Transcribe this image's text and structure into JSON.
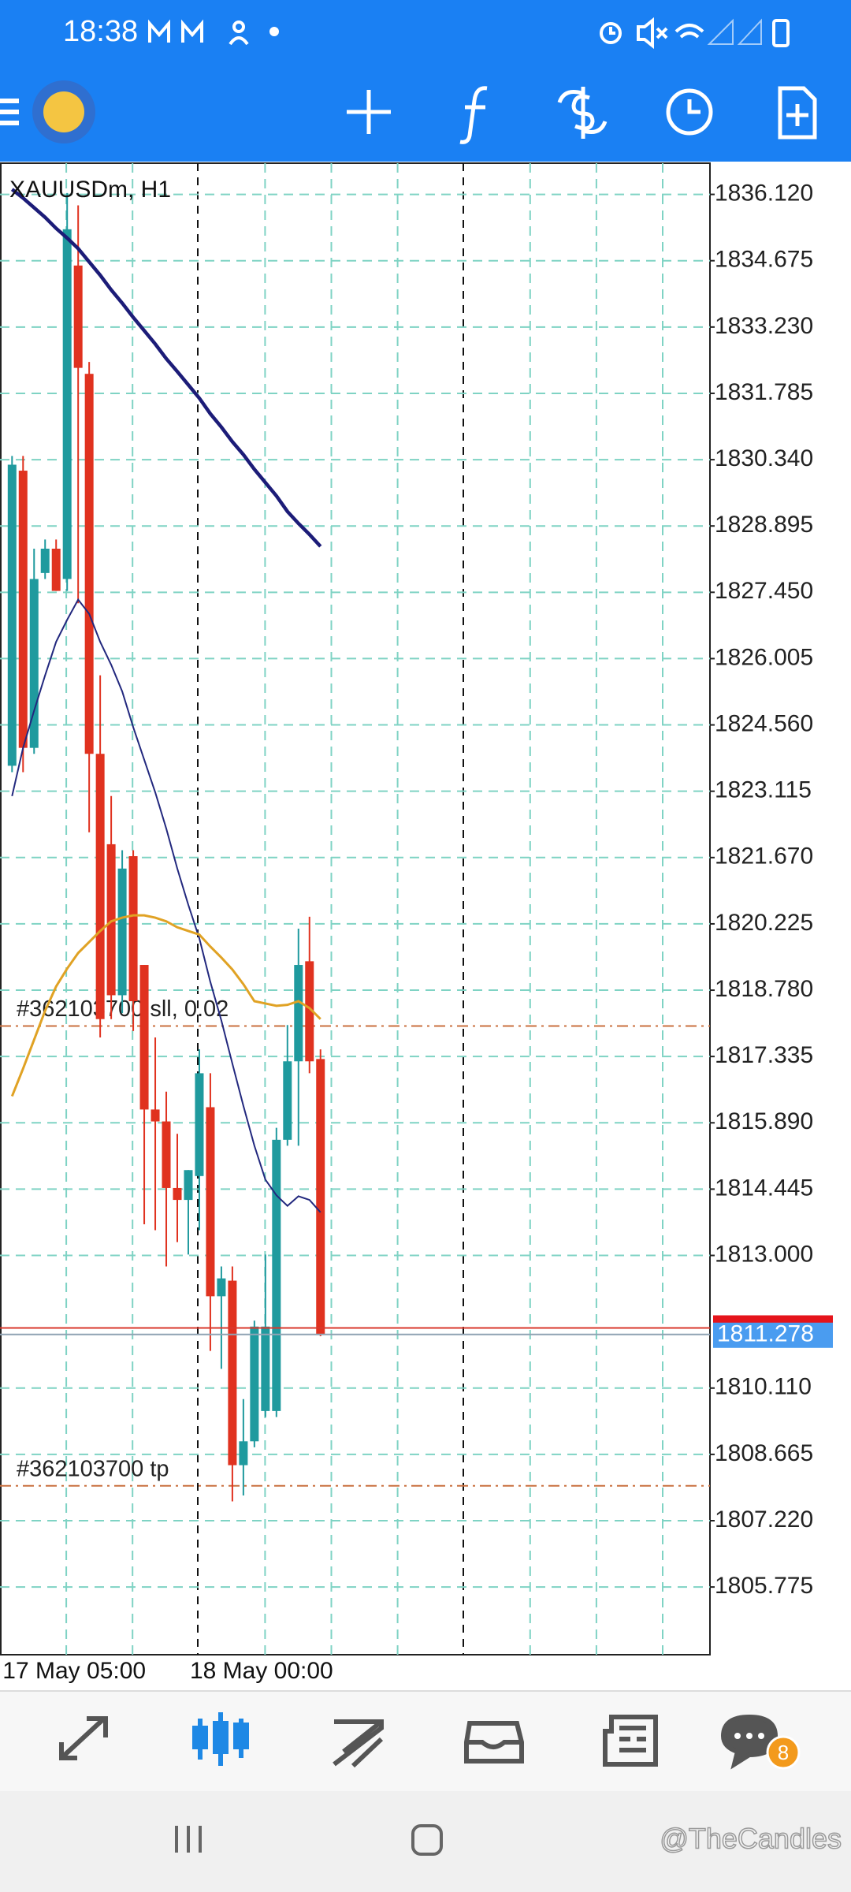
{
  "status_bar": {
    "time": "18:38"
  },
  "chart_data": {
    "type": "candlestick",
    "title": "XAUUSDm, H1",
    "categories": [
      "17 May 05:00",
      null,
      null,
      null,
      null,
      null,
      null,
      null,
      null,
      null,
      null,
      null,
      null,
      null,
      null,
      null,
      null,
      "18 May 00:00",
      null,
      null,
      null,
      null,
      null,
      null,
      null,
      null,
      null,
      null,
      null
    ],
    "open": [
      1823.67,
      1830.1,
      1824.06,
      1827.87,
      1828.4,
      1827.74,
      1834.57,
      1832.21,
      1823.93,
      1821.96,
      1818.67,
      1821.7,
      1819.33,
      1816.18,
      1815.92,
      1814.47,
      1814.21,
      1814.73,
      1816.23,
      1812.11,
      1812.45,
      1808.43,
      1808.95,
      1809.61,
      1809.61,
      1815.52,
      1817.23,
      1819.41,
      1817.28
    ],
    "high": [
      1830.42,
      1830.42,
      1828.4,
      1828.6,
      1828.6,
      1836.15,
      1835.88,
      1832.47,
      1825.64,
      1823.01,
      1821.83,
      1821.83,
      1819.33,
      1817.75,
      1816.57,
      1815.65,
      1814.86,
      1817.49,
      1816.97,
      1812.76,
      1812.76,
      1809.87,
      1811.58,
      1813.02,
      1815.78,
      1818.02,
      1820.12,
      1820.38,
      1817.49
    ],
    "low": [
      1823.53,
      1823.53,
      1823.93,
      1827.74,
      1827.48,
      1827.48,
      1827.21,
      1822.22,
      1817.75,
      1818.15,
      1818.28,
      1817.89,
      1813.68,
      1813.55,
      1812.76,
      1813.29,
      1813.02,
      1813.55,
      1810.92,
      1810.53,
      1807.64,
      1807.77,
      1808.82,
      1809.48,
      1809.48,
      1815.39,
      1815.39,
      1816.97,
      1811.24
    ],
    "close": [
      1830.23,
      1824.06,
      1827.74,
      1828.4,
      1827.48,
      1835.36,
      1832.34,
      1823.93,
      1818.15,
      1818.67,
      1821.43,
      1818.54,
      1816.18,
      1815.92,
      1814.47,
      1814.21,
      1814.86,
      1816.97,
      1812.11,
      1812.5,
      1808.43,
      1808.95,
      1811.45,
      1811.45,
      1815.52,
      1817.23,
      1819.33,
      1817.23,
      1811.278
    ],
    "up_color": "#1f9a9e",
    "down_color": "#e0321f",
    "indicators": [
      {
        "color": "#1c1c78",
        "values": [
          1836.23,
          1836.04,
          1835.83,
          1835.62,
          1835.38,
          1835.17,
          1834.94,
          1834.65,
          1834.36,
          1834.04,
          1833.75,
          1833.44,
          1833.15,
          1832.86,
          1832.54,
          1832.26,
          1831.97,
          1831.68,
          1831.34,
          1831.05,
          1830.73,
          1830.45,
          1830.13,
          1829.84,
          1829.55,
          1829.21,
          1828.95,
          1828.71,
          1828.45
        ]
      },
      {
        "color": "#22287e",
        "values": [
          1823.01,
          1824.06,
          1824.87,
          1825.64,
          1826.37,
          1826.85,
          1827.29,
          1826.98,
          1826.37,
          1825.87,
          1825.29,
          1824.51,
          1823.8,
          1823.09,
          1822.3,
          1821.43,
          1820.64,
          1819.91,
          1818.96,
          1818.12,
          1817.18,
          1816.26,
          1815.39,
          1814.65,
          1814.31,
          1814.08,
          1814.29,
          1814.21,
          1813.94
        ]
      },
      {
        "color": "#e0a224",
        "values": [
          1816.47,
          1817.07,
          1817.7,
          1818.33,
          1818.86,
          1819.25,
          1819.59,
          1819.83,
          1820.07,
          1820.28,
          1820.36,
          1820.41,
          1820.41,
          1820.36,
          1820.28,
          1820.15,
          1820.07,
          1819.99,
          1819.73,
          1819.49,
          1819.23,
          1818.91,
          1818.54,
          1818.49,
          1818.44,
          1818.46,
          1818.54,
          1818.39,
          1818.15
        ]
      }
    ],
    "bid": 1811.278,
    "ask": 1811.42,
    "orders": [
      {
        "label": "#362103700 sll, 0.02",
        "value": 1818.0
      },
      {
        "label": "#362103700 tp",
        "value": 1807.98
      }
    ],
    "order_color": "#c9703f",
    "ylim": [
      1804.3,
      1836.8
    ],
    "yticks": [
      {
        "value": 1836.12,
        "label": "1836.120"
      },
      1834.675,
      {
        "value": 1833.23,
        "label": "1833.230"
      },
      1831.785,
      {
        "value": 1830.34,
        "label": "1830.340"
      },
      1828.895,
      {
        "value": 1827.45,
        "label": "1827.450"
      },
      1826.005,
      {
        "value": 1824.56,
        "label": "1824.560"
      },
      1823.115,
      {
        "value": 1821.67,
        "label": "1821.670"
      },
      1820.225,
      {
        "value": 1818.78,
        "label": "1818.780"
      },
      1817.335,
      {
        "value": 1815.89,
        "label": "1815.890"
      },
      1814.445,
      {
        "value": 1813.0,
        "label": "1813.000"
      },
      {
        "value": 1810.11,
        "label": "1810.110"
      },
      1808.665,
      {
        "value": 1807.22,
        "label": "1807.220"
      },
      1805.775
    ],
    "grid": true
  },
  "bottom_nav": {
    "badge": 8
  },
  "watermark": "@TheCandles"
}
